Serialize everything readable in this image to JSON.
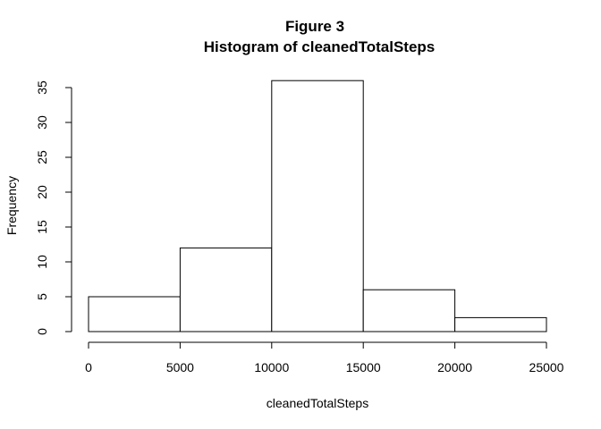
{
  "chart_data": {
    "type": "bar",
    "title": "Figure 3",
    "subtitle": "Histogram of cleanedTotalSteps",
    "xlabel": "cleanedTotalSteps",
    "ylabel": "Frequency",
    "bins": [
      {
        "start": 0,
        "end": 5000,
        "count": 5
      },
      {
        "start": 5000,
        "end": 10000,
        "count": 12
      },
      {
        "start": 10000,
        "end": 15000,
        "count": 36
      },
      {
        "start": 15000,
        "end": 20000,
        "count": 6
      },
      {
        "start": 20000,
        "end": 25000,
        "count": 2
      }
    ],
    "xlim": [
      0,
      25000
    ],
    "ylim": [
      0,
      35
    ],
    "x_ticks": [
      "0",
      "5000",
      "10000",
      "15000",
      "20000",
      "25000"
    ],
    "y_ticks": [
      "0",
      "5",
      "10",
      "15",
      "20",
      "25",
      "30",
      "35"
    ],
    "grid": false,
    "bar_fill": "#ffffff",
    "bar_stroke": "#000000"
  }
}
